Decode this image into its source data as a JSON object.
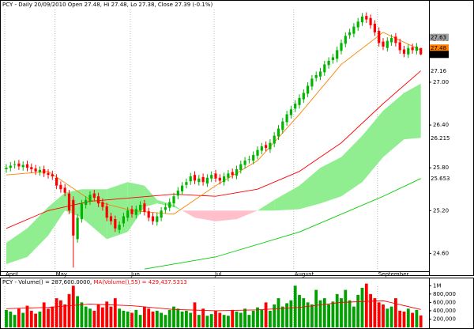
{
  "chart_data": [
    {
      "type": "candlestick",
      "title": "PCY - Daily 20/09/2010 Open 27.48, Hi 27.48, Lo 27.38, Close 27.39 (-0.1%)",
      "categories": [
        "April",
        null,
        null,
        null,
        null,
        null,
        null,
        null,
        null,
        null,
        null,
        null,
        "May",
        null,
        null,
        null,
        null,
        null,
        null,
        null,
        null,
        null,
        null,
        null,
        null,
        null,
        null,
        null,
        null,
        null,
        "Jun",
        null,
        null,
        null,
        null,
        null,
        null,
        null,
        null,
        null,
        null,
        null,
        null,
        null,
        null,
        null,
        null,
        null,
        null,
        null,
        "Jul",
        null,
        null,
        null,
        null,
        null,
        null,
        null,
        null,
        null,
        null,
        null,
        null,
        null,
        null,
        null,
        null,
        null,
        null,
        "August",
        null,
        null,
        null,
        null,
        null,
        null,
        null,
        null,
        null,
        null,
        null,
        null,
        null,
        null,
        null,
        null,
        null,
        null,
        null,
        "September",
        null,
        null,
        null,
        null,
        null,
        null,
        null,
        null,
        null,
        null
      ],
      "open": [
        25.78,
        25.8,
        25.84,
        25.86,
        25.81,
        25.85,
        25.81,
        25.79,
        25.74,
        25.78,
        25.73,
        25.71,
        25.66,
        25.56,
        25.52,
        25.44,
        25.35,
        24.8,
        25.08,
        25.28,
        25.33,
        25.44,
        25.4,
        25.32,
        25.26,
        25.12,
        25.08,
        24.93,
        25.02,
        25.1,
        25.22,
        25.14,
        25.2,
        25.3,
        25.19,
        25.12,
        25.04,
        25.1,
        25.21,
        25.24,
        25.3,
        25.41,
        25.47,
        25.56,
        25.61,
        25.7,
        25.6,
        25.67,
        25.58,
        25.65,
        25.72,
        25.66,
        25.6,
        25.66,
        25.74,
        25.69,
        25.77,
        25.84,
        25.91,
        25.9,
        25.97,
        26.04,
        26.12,
        26.06,
        26.14,
        26.24,
        26.33,
        26.44,
        26.54,
        26.63,
        26.68,
        26.76,
        26.84,
        26.94,
        27.06,
        27.08,
        27.14,
        27.24,
        27.31,
        27.33,
        27.44,
        27.54,
        27.66,
        27.68,
        27.77,
        27.84,
        27.93,
        27.9,
        27.82,
        27.72,
        27.57,
        27.48,
        27.56,
        27.64,
        27.56,
        27.46,
        27.39,
        27.49,
        27.44,
        27.48
      ],
      "high": [
        25.85,
        25.88,
        25.9,
        25.91,
        25.89,
        25.9,
        25.86,
        25.84,
        25.82,
        25.83,
        25.78,
        25.76,
        25.71,
        25.61,
        25.57,
        25.49,
        25.4,
        25.15,
        25.35,
        25.4,
        25.47,
        25.49,
        25.45,
        25.37,
        25.31,
        25.17,
        25.13,
        25.05,
        25.17,
        25.25,
        25.27,
        25.27,
        25.33,
        25.35,
        25.24,
        25.17,
        25.17,
        25.25,
        25.3,
        25.37,
        25.45,
        25.53,
        25.6,
        25.65,
        25.73,
        25.75,
        25.7,
        25.72,
        25.71,
        25.75,
        25.77,
        25.71,
        25.73,
        25.77,
        25.79,
        25.83,
        25.9,
        25.95,
        25.97,
        26.03,
        26.1,
        26.15,
        26.17,
        26.2,
        26.3,
        26.4,
        26.5,
        26.6,
        26.67,
        26.75,
        26.83,
        26.9,
        27.0,
        27.1,
        27.15,
        27.2,
        27.3,
        27.35,
        27.4,
        27.5,
        27.6,
        27.7,
        27.75,
        27.83,
        27.9,
        27.97,
        27.98,
        27.95,
        27.87,
        27.77,
        27.62,
        27.63,
        27.67,
        27.69,
        27.61,
        27.51,
        27.53,
        27.54,
        27.55,
        27.48
      ],
      "low": [
        25.73,
        25.75,
        25.79,
        25.77,
        25.76,
        25.75,
        25.73,
        25.7,
        25.69,
        25.67,
        25.65,
        25.63,
        25.5,
        25.45,
        25.4,
        25.15,
        24.4,
        24.75,
        25.03,
        25.23,
        25.28,
        25.33,
        25.25,
        25.2,
        25.05,
        25.0,
        24.9,
        24.88,
        24.97,
        25.05,
        25.1,
        25.09,
        25.15,
        25.13,
        25.05,
        25.0,
        24.99,
        25.05,
        25.16,
        25.19,
        25.25,
        25.36,
        25.42,
        25.51,
        25.56,
        25.57,
        25.55,
        25.55,
        25.53,
        25.6,
        25.6,
        25.57,
        25.55,
        25.61,
        25.65,
        25.64,
        25.72,
        25.79,
        25.86,
        25.85,
        25.92,
        25.99,
        26.03,
        26.01,
        26.09,
        26.19,
        26.28,
        26.39,
        26.49,
        26.58,
        26.63,
        26.71,
        26.79,
        26.89,
        27.01,
        27.03,
        27.09,
        27.19,
        27.26,
        27.28,
        27.39,
        27.49,
        27.61,
        27.63,
        27.72,
        27.79,
        27.83,
        27.75,
        27.65,
        27.5,
        27.45,
        27.43,
        27.51,
        27.5,
        27.4,
        27.35,
        27.34,
        27.4,
        27.39,
        27.38
      ],
      "close": [
        25.8,
        25.83,
        25.85,
        25.82,
        25.84,
        25.8,
        25.78,
        25.75,
        25.77,
        25.72,
        25.7,
        25.68,
        25.55,
        25.5,
        25.45,
        25.2,
        24.85,
        25.1,
        25.3,
        25.35,
        25.42,
        25.38,
        25.3,
        25.25,
        25.1,
        25.05,
        24.95,
        25.0,
        25.12,
        25.2,
        25.15,
        25.22,
        25.28,
        25.18,
        25.1,
        25.05,
        25.12,
        25.2,
        25.25,
        25.32,
        25.4,
        25.48,
        25.55,
        25.6,
        25.68,
        25.62,
        25.65,
        25.6,
        25.66,
        25.7,
        25.65,
        25.62,
        25.68,
        25.72,
        25.7,
        25.78,
        25.85,
        25.9,
        25.92,
        25.98,
        26.05,
        26.1,
        26.08,
        26.15,
        26.25,
        26.35,
        26.45,
        26.55,
        26.62,
        26.7,
        26.78,
        26.85,
        26.95,
        27.05,
        27.1,
        27.15,
        27.25,
        27.3,
        27.35,
        27.45,
        27.55,
        27.65,
        27.7,
        27.78,
        27.85,
        27.92,
        27.88,
        27.8,
        27.7,
        27.55,
        27.5,
        27.58,
        27.62,
        27.55,
        27.45,
        27.4,
        27.48,
        27.45,
        27.5,
        27.39
      ],
      "up_color": "#00b400",
      "down_color": "#ff0000",
      "ylim": [
        24.36,
        28.02
      ],
      "yticks": [
        {
          "value": 27.6,
          "label": "27.60"
        },
        {
          "value": 27.0,
          "label": "27.00"
        },
        {
          "value": 26.4,
          "label": "26.40"
        },
        {
          "value": 25.8,
          "label": "25.80"
        },
        {
          "value": 25.2,
          "label": "25.20"
        },
        {
          "value": 24.6,
          "label": "24.60"
        }
      ],
      "cloud": {
        "x": [
          0,
          5,
          10,
          14,
          18,
          24,
          29,
          33,
          36,
          40,
          42,
          45,
          50,
          55,
          60,
          64,
          70,
          75,
          80,
          85,
          90,
          95,
          99
        ],
        "span_a": [
          24.75,
          24.95,
          25.25,
          25.45,
          25.5,
          25.5,
          25.6,
          25.55,
          25.35,
          25.28,
          25.2,
          25.1,
          25.05,
          25.08,
          25.2,
          25.35,
          25.55,
          25.8,
          25.95,
          26.25,
          26.6,
          26.85,
          26.98
        ],
        "span_b": [
          24.45,
          24.55,
          24.85,
          25.2,
          25.1,
          24.8,
          24.9,
          25.25,
          25.3,
          25.25,
          25.2,
          25.2,
          25.2,
          25.2,
          25.2,
          25.2,
          25.22,
          25.3,
          25.4,
          25.6,
          25.95,
          26.2,
          26.22
        ],
        "up_color": "#90ee90",
        "down_color": "#ffc0cb"
      },
      "lines": [
        {
          "color": "#ff0000",
          "x": [
            0,
            10,
            20,
            30,
            40,
            50,
            60,
            70,
            80,
            90,
            99
          ],
          "values": [
            24.95,
            25.2,
            25.33,
            25.38,
            25.43,
            25.4,
            25.5,
            25.75,
            26.15,
            26.7,
            27.16
          ]
        },
        {
          "color": "#ff8000",
          "x": [
            0,
            10,
            20,
            30,
            40,
            50,
            60,
            70,
            80,
            90,
            99
          ],
          "values": [
            25.7,
            25.75,
            25.35,
            25.2,
            25.15,
            25.55,
            25.9,
            26.55,
            27.25,
            27.7,
            27.45
          ]
        },
        {
          "color": "#00cc00",
          "x": [
            33,
            50,
            70,
            90,
            99
          ],
          "values": [
            24.38,
            24.55,
            24.9,
            25.4,
            25.65
          ]
        }
      ],
      "badges": [
        {
          "value": 27.63,
          "label": "27.63",
          "color": "#a0a0a0",
          "text_color": "#000000"
        },
        {
          "value": 27.48,
          "label": "27.48",
          "color": "#ff8000",
          "text_color": "#000000"
        },
        {
          "value": 27.39,
          "label": "27.39",
          "color": "#000000",
          "text_color": "#ffffff"
        },
        {
          "value": 27.16,
          "label": "27.16",
          "color": "#ffffff",
          "text_color": "#ff0000"
        },
        {
          "value": 26.215,
          "label": "26.215",
          "color": "#ffffff",
          "text_color": "#000000"
        },
        {
          "value": 25.653,
          "label": "25.653",
          "color": "#ffffff",
          "text_color": "#00a000"
        }
      ]
    },
    {
      "type": "bar",
      "title": "PCY - Volume() = 287,600.0000,",
      "subtitle": "MA(Volume(),55) = 429,437.5313",
      "values": [
        420000,
        380000,
        300000,
        450000,
        350000,
        520000,
        400000,
        330000,
        380000,
        600000,
        450000,
        500000,
        700000,
        650000,
        550000,
        800000,
        1000000,
        750000,
        600000,
        500000,
        450000,
        400000,
        550000,
        480000,
        620000,
        500000,
        700000,
        450000,
        400000,
        380000,
        350000,
        420000,
        300000,
        500000,
        450000,
        380000,
        400000,
        350000,
        300000,
        420000,
        500000,
        450000,
        380000,
        400000,
        350000,
        600000,
        300000,
        450000,
        280000,
        320000,
        400000,
        350000,
        300000,
        280000,
        420000,
        380000,
        350000,
        450000,
        300000,
        400000,
        480000,
        420000,
        600000,
        400000,
        550000,
        700000,
        500000,
        580000,
        650000,
        1000000,
        780000,
        700000,
        600000,
        550000,
        900000,
        650000,
        700000,
        550000,
        620000,
        800000,
        700000,
        900000,
        650000,
        500000,
        780000,
        950000,
        1050000,
        800000,
        700000,
        600000,
        550000,
        450000,
        500000,
        700000,
        400000,
        380000,
        450000,
        350000,
        420000,
        287600
      ],
      "up_color": "#00a000",
      "down_color": "#ff0000",
      "ma": {
        "color": "#ff0000",
        "x": [
          0,
          10,
          20,
          30,
          40,
          50,
          60,
          70,
          80,
          90,
          99
        ],
        "values": [
          450000,
          480000,
          560000,
          520000,
          430000,
          400000,
          420000,
          480000,
          600000,
          640000,
          429437.5313
        ]
      },
      "ylim": [
        0,
        1100000
      ],
      "yticks": [
        {
          "value": 1000000,
          "label": "1M"
        },
        {
          "value": 800000,
          "label": "800,000"
        },
        {
          "value": 600000,
          "label": "600,000"
        },
        {
          "value": 400000,
          "label": "400,000"
        },
        {
          "value": 200000,
          "label": "200,000"
        }
      ]
    }
  ]
}
